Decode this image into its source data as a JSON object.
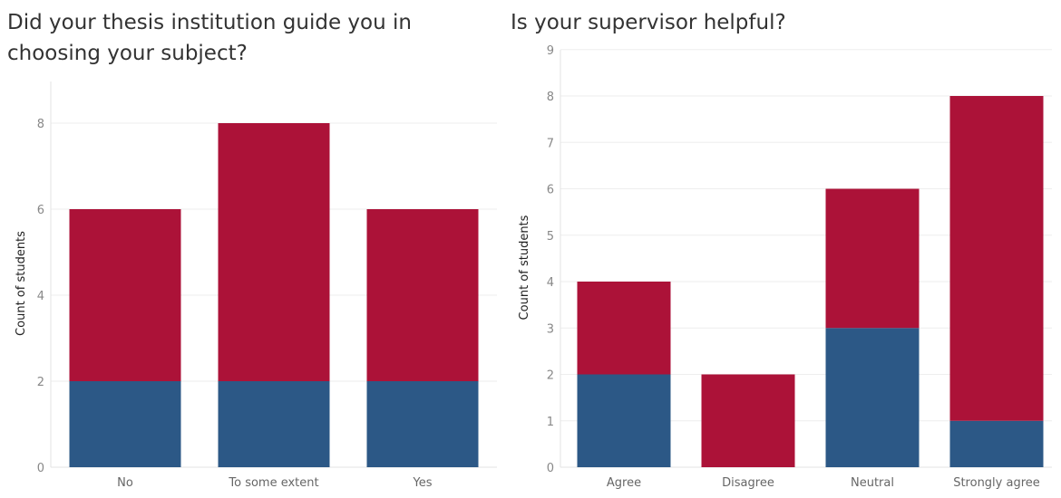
{
  "colors": {
    "series_a": "#2c5886",
    "series_b": "#ac1238",
    "grid": "#eeeeee",
    "axis": "#e3e3e3"
  },
  "chart_data": [
    {
      "type": "bar",
      "stacked": true,
      "title": "Did your thesis institution guide you in choosing your subject?",
      "xlabel": "",
      "ylabel": "Count of students",
      "categories": [
        "No",
        "To some extent",
        "Yes"
      ],
      "yticks": [
        0,
        2,
        4,
        6,
        8
      ],
      "ylim": [
        0,
        9
      ],
      "grid": true,
      "legend": "none",
      "series": [
        {
          "values": [
            2,
            2,
            2
          ],
          "color": "#2c5886"
        },
        {
          "values": [
            4,
            6,
            4
          ],
          "color": "#ac1238"
        }
      ]
    },
    {
      "type": "bar",
      "stacked": true,
      "title": "Is your supervisor helpful?",
      "xlabel": "",
      "ylabel": "Count of students",
      "categories": [
        "Agree",
        "Disagree",
        "Neutral",
        "Strongly agree"
      ],
      "yticks": [
        0,
        1,
        2,
        3,
        4,
        5,
        6,
        7,
        8,
        9
      ],
      "ylim": [
        0,
        9
      ],
      "grid": true,
      "legend": "none",
      "series": [
        {
          "values": [
            2,
            0,
            3,
            1
          ],
          "color": "#2c5886"
        },
        {
          "values": [
            2,
            2,
            3,
            7
          ],
          "color": "#ac1238"
        }
      ]
    }
  ]
}
